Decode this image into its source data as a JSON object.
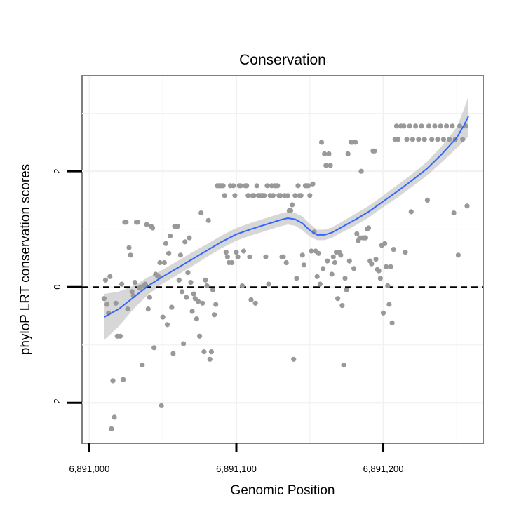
{
  "chart_data": {
    "type": "scatter",
    "title": "Conservation",
    "xlabel": "Genomic Position",
    "ylabel": "phyloP LRT conservation scores",
    "xlim": [
      6890995,
      6891268
    ],
    "ylim": [
      -2.7,
      3.65
    ],
    "x_ticks": [
      {
        "value": 6891000,
        "label": "6,891,000"
      },
      {
        "value": 6891100,
        "label": "6,891,100"
      },
      {
        "value": 6891200,
        "label": "6,891,200"
      }
    ],
    "y_ticks": [
      {
        "value": -2,
        "label": "-2"
      },
      {
        "value": 0,
        "label": "0"
      },
      {
        "value": 2,
        "label": "2"
      }
    ],
    "reference_line": {
      "y": 0,
      "style": "dashed"
    },
    "colors": {
      "points": "#999999",
      "smooth": "#3366FF",
      "ribbon": "#d0d0d0",
      "panel_border": "#7f7f7f",
      "grid": "#f2f2f2"
    },
    "points": [
      [
        6891010,
        -0.2
      ],
      [
        6891012,
        -0.3
      ],
      [
        6891013,
        -0.45
      ],
      [
        6891011,
        0.12
      ],
      [
        6891014,
        0.18
      ],
      [
        6891015,
        -2.45
      ],
      [
        6891016,
        -1.62
      ],
      [
        6891017,
        -2.25
      ],
      [
        6891018,
        -0.28
      ],
      [
        6891019,
        -0.85
      ],
      [
        6891021,
        -0.85
      ],
      [
        6891022,
        0.05
      ],
      [
        6891023,
        -1.6
      ],
      [
        6891024,
        1.12
      ],
      [
        6891025,
        1.12
      ],
      [
        6891026,
        -0.38
      ],
      [
        6891027,
        0.68
      ],
      [
        6891028,
        0.55
      ],
      [
        6891029,
        -0.08
      ],
      [
        6891030,
        -0.15
      ],
      [
        6891031,
        0.08
      ],
      [
        6891032,
        1.12
      ],
      [
        6891033,
        1.12
      ],
      [
        6891034,
        -0.02
      ],
      [
        6891035,
        0.0
      ],
      [
        6891036,
        -1.35
      ],
      [
        6891037,
        0.02
      ],
      [
        6891038,
        0.05
      ],
      [
        6891039,
        1.08
      ],
      [
        6891040,
        -0.38
      ],
      [
        6891041,
        -0.18
      ],
      [
        6891042,
        1.05
      ],
      [
        6891043,
        1.02
      ],
      [
        6891044,
        -1.05
      ],
      [
        6891045,
        0.22
      ],
      [
        6891046,
        0.2
      ],
      [
        6891047,
        0.18
      ],
      [
        6891048,
        0.42
      ],
      [
        6891049,
        -2.05
      ],
      [
        6891050,
        -0.52
      ],
      [
        6891051,
        0.42
      ],
      [
        6891052,
        0.75
      ],
      [
        6891053,
        -0.65
      ],
      [
        6891054,
        0.58
      ],
      [
        6891055,
        0.88
      ],
      [
        6891056,
        -0.35
      ],
      [
        6891057,
        -1.15
      ],
      [
        6891058,
        1.05
      ],
      [
        6891059,
        1.05
      ],
      [
        6891060,
        1.05
      ],
      [
        6891061,
        0.12
      ],
      [
        6891062,
        0.55
      ],
      [
        6891063,
        -0.08
      ],
      [
        6891064,
        -0.98
      ],
      [
        6891065,
        0.78
      ],
      [
        6891066,
        -0.18
      ],
      [
        6891067,
        0.25
      ],
      [
        6891068,
        0.85
      ],
      [
        6891069,
        0.08
      ],
      [
        6891070,
        -0.42
      ],
      [
        6891071,
        -0.12
      ],
      [
        6891072,
        -0.2
      ],
      [
        6891073,
        -0.55
      ],
      [
        6891074,
        -0.25
      ],
      [
        6891075,
        -0.85
      ],
      [
        6891076,
        1.28
      ],
      [
        6891077,
        -0.28
      ],
      [
        6891078,
        -1.12
      ],
      [
        6891079,
        0.12
      ],
      [
        6891080,
        0.02
      ],
      [
        6891081,
        1.15
      ],
      [
        6891082,
        -1.25
      ],
      [
        6891083,
        -1.12
      ],
      [
        6891084,
        -0.05
      ],
      [
        6891085,
        -0.48
      ],
      [
        6891086,
        -0.3
      ],
      [
        6891087,
        1.75
      ],
      [
        6891088,
        1.75
      ],
      [
        6891089,
        1.75
      ],
      [
        6891090,
        1.75
      ],
      [
        6891091,
        1.75
      ],
      [
        6891092,
        1.58
      ],
      [
        6891093,
        0.6
      ],
      [
        6891094,
        0.52
      ],
      [
        6891095,
        0.42
      ],
      [
        6891096,
        1.75
      ],
      [
        6891097,
        0.42
      ],
      [
        6891098,
        1.75
      ],
      [
        6891099,
        1.58
      ],
      [
        6891100,
        0.6
      ],
      [
        6891101,
        0.52
      ],
      [
        6891102,
        1.75
      ],
      [
        6891103,
        1.75
      ],
      [
        6891104,
        0.02
      ],
      [
        6891105,
        0.62
      ],
      [
        6891106,
        1.75
      ],
      [
        6891107,
        1.75
      ],
      [
        6891108,
        1.58
      ],
      [
        6891109,
        0.52
      ],
      [
        6891110,
        -0.22
      ],
      [
        6891111,
        1.58
      ],
      [
        6891112,
        1.58
      ],
      [
        6891113,
        -0.28
      ],
      [
        6891114,
        1.75
      ],
      [
        6891115,
        1.58
      ],
      [
        6891116,
        1.58
      ],
      [
        6891117,
        1.58
      ],
      [
        6891118,
        1.58
      ],
      [
        6891119,
        1.58
      ],
      [
        6891120,
        0.52
      ],
      [
        6891121,
        1.75
      ],
      [
        6891122,
        0.05
      ],
      [
        6891123,
        1.58
      ],
      [
        6891124,
        1.75
      ],
      [
        6891125,
        1.58
      ],
      [
        6891126,
        1.75
      ],
      [
        6891127,
        1.75
      ],
      [
        6891128,
        1.75
      ],
      [
        6891129,
        1.58
      ],
      [
        6891130,
        1.58
      ],
      [
        6891131,
        0.52
      ],
      [
        6891132,
        0.52
      ],
      [
        6891133,
        1.58
      ],
      [
        6891134,
        0.42
      ],
      [
        6891135,
        1.58
      ],
      [
        6891136,
        1.32
      ],
      [
        6891137,
        1.32
      ],
      [
        6891138,
        1.42
      ],
      [
        6891139,
        -1.25
      ],
      [
        6891140,
        1.58
      ],
      [
        6891141,
        0.15
      ],
      [
        6891142,
        1.75
      ],
      [
        6891143,
        1.58
      ],
      [
        6891144,
        1.58
      ],
      [
        6891145,
        0.55
      ],
      [
        6891146,
        0.38
      ],
      [
        6891147,
        1.75
      ],
      [
        6891148,
        1.75
      ],
      [
        6891149,
        1.75
      ],
      [
        6891150,
        1.58
      ],
      [
        6891151,
        0.62
      ],
      [
        6891152,
        1.78
      ],
      [
        6891153,
        0.95
      ],
      [
        6891154,
        0.62
      ],
      [
        6891155,
        0.18
      ],
      [
        6891156,
        0.58
      ],
      [
        6891157,
        0.05
      ],
      [
        6891158,
        2.5
      ],
      [
        6891159,
        0.32
      ],
      [
        6891160,
        2.3
      ],
      [
        6891161,
        2.1
      ],
      [
        6891162,
        0.45
      ],
      [
        6891163,
        2.3
      ],
      [
        6891164,
        2.1
      ],
      [
        6891165,
        0.22
      ],
      [
        6891166,
        0.52
      ],
      [
        6891167,
        0.42
      ],
      [
        6891168,
        0.6
      ],
      [
        6891169,
        -0.2
      ],
      [
        6891170,
        0.6
      ],
      [
        6891171,
        0.55
      ],
      [
        6891172,
        -0.32
      ],
      [
        6891173,
        -1.35
      ],
      [
        6891174,
        0.15
      ],
      [
        6891175,
        -0.05
      ],
      [
        6891176,
        2.3
      ],
      [
        6891177,
        0.45
      ],
      [
        6891178,
        2.5
      ],
      [
        6891179,
        2.5
      ],
      [
        6891180,
        0.32
      ],
      [
        6891181,
        2.5
      ],
      [
        6891182,
        0.92
      ],
      [
        6891183,
        0.8
      ],
      [
        6891184,
        0.85
      ],
      [
        6891185,
        2.0
      ],
      [
        6891186,
        0.85
      ],
      [
        6891187,
        0.85
      ],
      [
        6891188,
        0.85
      ],
      [
        6891189,
        1.0
      ],
      [
        6891190,
        1.02
      ],
      [
        6891191,
        0.45
      ],
      [
        6891192,
        0.4
      ],
      [
        6891193,
        2.35
      ],
      [
        6891194,
        2.35
      ],
      [
        6891195,
        0.48
      ],
      [
        6891196,
        0.3
      ],
      [
        6891197,
        0.28
      ],
      [
        6891198,
        0.15
      ],
      [
        6891199,
        0.72
      ],
      [
        6891200,
        -0.45
      ],
      [
        6891201,
        0.75
      ],
      [
        6891202,
        0.35
      ],
      [
        6891203,
        0.02
      ],
      [
        6891204,
        -0.3
      ],
      [
        6891205,
        0.35
      ],
      [
        6891206,
        -0.62
      ],
      [
        6891207,
        0.65
      ],
      [
        6891208,
        2.55
      ],
      [
        6891209,
        2.78
      ],
      [
        6891210,
        2.55
      ],
      [
        6891212,
        2.78
      ],
      [
        6891214,
        2.78
      ],
      [
        6891215,
        0.6
      ],
      [
        6891216,
        2.55
      ],
      [
        6891218,
        2.78
      ],
      [
        6891219,
        1.3
      ],
      [
        6891220,
        2.55
      ],
      [
        6891222,
        2.78
      ],
      [
        6891224,
        2.55
      ],
      [
        6891226,
        2.78
      ],
      [
        6891228,
        2.55
      ],
      [
        6891230,
        1.5
      ],
      [
        6891231,
        2.78
      ],
      [
        6891233,
        2.55
      ],
      [
        6891235,
        2.78
      ],
      [
        6891237,
        2.55
      ],
      [
        6891239,
        2.78
      ],
      [
        6891241,
        2.55
      ],
      [
        6891243,
        2.78
      ],
      [
        6891245,
        2.55
      ],
      [
        6891247,
        2.78
      ],
      [
        6891248,
        1.28
      ],
      [
        6891249,
        2.55
      ],
      [
        6891251,
        0.55
      ],
      [
        6891252,
        2.78
      ],
      [
        6891254,
        2.55
      ],
      [
        6891256,
        2.78
      ],
      [
        6891257,
        1.4
      ]
    ],
    "smooth": {
      "x": [
        6891010,
        6891020,
        6891030,
        6891040,
        6891050,
        6891060,
        6891070,
        6891080,
        6891090,
        6891100,
        6891110,
        6891120,
        6891130,
        6891135,
        6891140,
        6891145,
        6891150,
        6891155,
        6891160,
        6891165,
        6891170,
        6891180,
        6891190,
        6891200,
        6891210,
        6891220,
        6891230,
        6891240,
        6891250,
        6891255,
        6891258
      ],
      "y": [
        -0.52,
        -0.38,
        -0.18,
        0.02,
        0.18,
        0.33,
        0.48,
        0.63,
        0.78,
        0.91,
        1.0,
        1.08,
        1.16,
        1.19,
        1.17,
        1.1,
        0.98,
        0.9,
        0.9,
        0.94,
        1.01,
        1.15,
        1.3,
        1.48,
        1.66,
        1.85,
        2.05,
        2.3,
        2.58,
        2.8,
        2.95
      ],
      "se": [
        0.4,
        0.3,
        0.2,
        0.15,
        0.12,
        0.12,
        0.12,
        0.11,
        0.11,
        0.11,
        0.11,
        0.11,
        0.11,
        0.11,
        0.11,
        0.12,
        0.11,
        0.09,
        0.09,
        0.09,
        0.09,
        0.1,
        0.1,
        0.1,
        0.11,
        0.11,
        0.12,
        0.14,
        0.18,
        0.28,
        0.35
      ]
    }
  }
}
